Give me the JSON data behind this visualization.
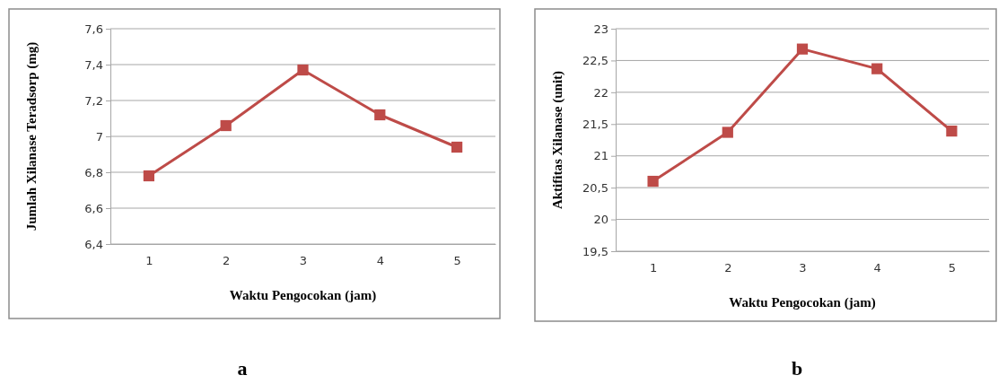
{
  "chart_data": [
    {
      "type": "line",
      "categories": [
        "1",
        "2",
        "3",
        "4",
        "5"
      ],
      "series": [
        {
          "color": "#be4b48",
          "values": [
            6.78,
            7.06,
            7.37,
            7.12,
            6.94
          ]
        }
      ],
      "xlabel": "Waktu Pengocokan (jam)",
      "ylabel": "Jumlah Xilanase Teradsorp (mg)",
      "ylim": [
        6.4,
        7.6
      ],
      "yticks": [
        {
          "value": 6.4,
          "label": "6,4"
        },
        {
          "value": 6.6,
          "label": "6,6"
        },
        {
          "value": 6.8,
          "label": "6,8"
        },
        7,
        {
          "value": 7.2,
          "label": "7,2"
        },
        {
          "value": 7.4,
          "label": "7,4"
        },
        {
          "value": 7.6,
          "label": "7,6"
        }
      ],
      "grid": "y",
      "marker": "square",
      "annotations": [
        "a"
      ]
    },
    {
      "type": "line",
      "categories": [
        "1",
        "2",
        "3",
        "4",
        "5"
      ],
      "series": [
        {
          "color": "#be4b48",
          "values": [
            20.6,
            21.37,
            22.68,
            22.37,
            21.39
          ]
        }
      ],
      "xlabel": "Waktu Pengocokan (jam)",
      "ylabel": "Aktifitas Xilanase (unit)",
      "ylim": [
        19.5,
        23
      ],
      "yticks": [
        {
          "value": 19.5,
          "label": "19,5"
        },
        20,
        {
          "value": 20.5,
          "label": "20,5"
        },
        21,
        {
          "value": 21.5,
          "label": "21,5"
        },
        22,
        {
          "value": 22.5,
          "label": "22,5"
        },
        23
      ],
      "grid": "y",
      "marker": "square",
      "annotations": [
        "b"
      ]
    }
  ]
}
